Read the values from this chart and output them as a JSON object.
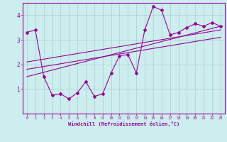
{
  "xlabel": "Windchill (Refroidissement éolien,°C)",
  "ylabel": "",
  "bg_color": "#cceeee",
  "line_color": "#990099",
  "grid_color": "#aacccc",
  "xlim": [
    -0.5,
    23.5
  ],
  "ylim": [
    0,
    4.5
  ],
  "xticks": [
    0,
    1,
    2,
    3,
    4,
    5,
    6,
    7,
    8,
    9,
    10,
    11,
    12,
    13,
    14,
    15,
    16,
    17,
    18,
    19,
    20,
    21,
    22,
    23
  ],
  "yticks": [
    1,
    2,
    3,
    4
  ],
  "series1_x": [
    0,
    1,
    2,
    3,
    4,
    5,
    6,
    7,
    8,
    9,
    10,
    11,
    12,
    13,
    14,
    15,
    16,
    17,
    18,
    19,
    20,
    21,
    22,
    23
  ],
  "series1_y": [
    3.3,
    3.4,
    1.5,
    0.75,
    0.8,
    0.6,
    0.85,
    1.3,
    0.7,
    0.8,
    1.65,
    2.35,
    2.4,
    1.65,
    3.4,
    4.35,
    4.2,
    3.2,
    3.3,
    3.5,
    3.65,
    3.55,
    3.7,
    3.55
  ],
  "series2_x": [
    0,
    23
  ],
  "series2_y": [
    1.8,
    3.1
  ],
  "series3_x": [
    0,
    23
  ],
  "series3_y": [
    2.1,
    3.4
  ],
  "series4_x": [
    0,
    23
  ],
  "series4_y": [
    1.5,
    3.55
  ]
}
